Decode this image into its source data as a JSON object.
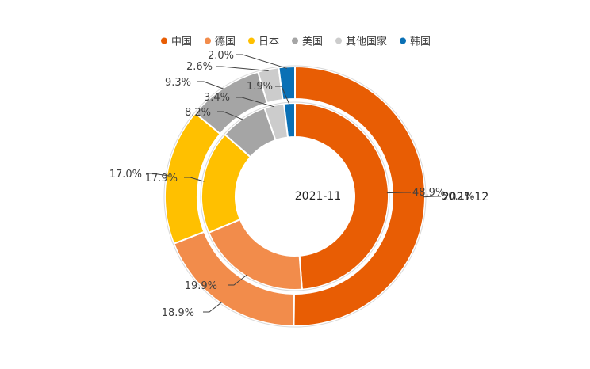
{
  "chart_data": {
    "type": "doughnut",
    "legend": {
      "position": "top",
      "items": [
        {
          "name": "中国",
          "color": "#E85D04"
        },
        {
          "name": "德国",
          "color": "#F28C4B"
        },
        {
          "name": "日本",
          "color": "#FFC000"
        },
        {
          "name": "美国",
          "color": "#A5A5A5"
        },
        {
          "name": "其他国家",
          "color": "#CCCCCC"
        },
        {
          "name": "韩国",
          "color": "#0A70B5"
        }
      ]
    },
    "rings": [
      {
        "name": "2021-11",
        "position": "inner",
        "values": [
          48.9,
          19.9,
          17.9,
          8.2,
          3.4,
          1.9
        ],
        "labels": [
          "48.9%",
          "19.9%",
          "17.9%",
          "8.2%",
          "3.4%",
          "1.9%"
        ]
      },
      {
        "name": "2021-12",
        "position": "outer",
        "values": [
          50.1,
          18.9,
          17.0,
          9.3,
          2.6,
          2.0
        ],
        "labels": [
          "50.1%",
          "18.9%",
          "17.0%",
          "9.3%",
          "2.6%",
          "2.0%"
        ]
      }
    ]
  }
}
